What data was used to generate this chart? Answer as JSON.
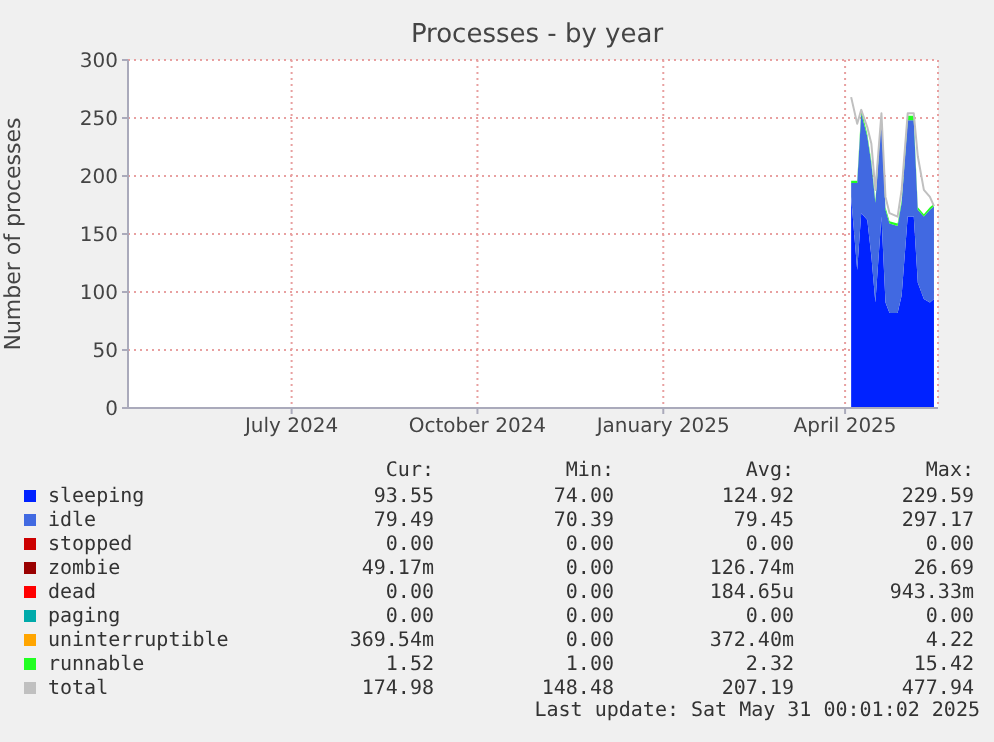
{
  "chart_data": {
    "type": "area",
    "title": "Processes - by year",
    "ylabel": "Number of processes",
    "x": [
      "2025-04-04",
      "2025-04-07",
      "2025-04-09",
      "2025-04-12",
      "2025-04-14",
      "2025-04-16",
      "2025-04-19",
      "2025-04-21",
      "2025-04-23",
      "2025-04-27",
      "2025-04-29",
      "2025-05-02",
      "2025-05-05",
      "2025-05-07",
      "2025-05-10",
      "2025-05-13",
      "2025-05-15"
    ],
    "series": [
      {
        "name": "sleeping",
        "color": "#0022ff",
        "values": [
          182,
          119,
          168,
          162,
          131,
          91,
          165,
          91,
          82,
          82,
          97,
          165,
          165,
          108,
          94,
          91,
          94
        ]
      },
      {
        "name": "idle",
        "color": "#4169e1",
        "values": [
          12,
          75,
          86,
          72,
          80,
          86,
          86,
          80,
          77,
          75,
          80,
          83,
          83,
          63,
          71,
          80,
          80
        ]
      },
      {
        "name": "stopped",
        "color": "#cc0000",
        "values": [
          null,
          null,
          null,
          null,
          null,
          null,
          null,
          null,
          null,
          null,
          null,
          null,
          null,
          null,
          null,
          null,
          null
        ]
      },
      {
        "name": "zombie",
        "color": "#990000",
        "values": [
          null,
          null,
          null,
          null,
          null,
          null,
          null,
          null,
          null,
          null,
          null,
          null,
          null,
          null,
          null,
          null,
          null
        ]
      },
      {
        "name": "dead",
        "color": "#ff0000",
        "values": [
          null,
          null,
          null,
          null,
          null,
          null,
          null,
          null,
          null,
          null,
          null,
          null,
          null,
          null,
          null,
          null,
          null
        ]
      },
      {
        "name": "paging",
        "color": "#00aaaa",
        "values": [
          null,
          null,
          null,
          null,
          null,
          null,
          null,
          null,
          null,
          null,
          null,
          null,
          null,
          null,
          null,
          null,
          null
        ]
      },
      {
        "name": "uninterruptible",
        "color": "#ffa500",
        "values": [
          null,
          null,
          null,
          null,
          null,
          null,
          null,
          null,
          null,
          null,
          null,
          null,
          null,
          null,
          null,
          null,
          null
        ]
      },
      {
        "name": "runnable",
        "color": "#22ff22",
        "values": [
          2,
          2,
          4,
          2,
          2,
          2,
          2,
          2,
          2,
          2,
          2,
          4,
          4,
          2,
          2,
          2,
          2
        ]
      },
      {
        "name": "total",
        "type": "line",
        "color": "#c0c0c0",
        "values": [
          268,
          245,
          257,
          242,
          228,
          188,
          254,
          182,
          168,
          165,
          188,
          254,
          254,
          217,
          188,
          182,
          174
        ]
      }
    ],
    "stacked": true,
    "xlim": [
      "2024-04-11",
      "2025-05-17"
    ],
    "xticks": [
      {
        "value": "2024-07-01",
        "label": "July 2024"
      },
      {
        "value": "2024-10-01",
        "label": "October 2024"
      },
      {
        "value": "2025-01-01",
        "label": "January 2025"
      },
      {
        "value": "2025-04-01",
        "label": "April 2025"
      }
    ],
    "ylim": [
      0,
      300
    ],
    "yticks": [
      0,
      50,
      100,
      150,
      200,
      250,
      300
    ],
    "grid": true,
    "legend": "bottom",
    "annotations": [
      "Cur:",
      "Min:",
      "Avg:",
      "Max:",
      "93.55",
      "74.00",
      "124.92",
      "229.59",
      "79.49",
      "70.39",
      "79.45",
      "297.17",
      "0.00",
      "0.00",
      "0.00",
      "0.00",
      "49.17m",
      "0.00",
      "126.74m",
      "26.69",
      "0.00",
      "0.00",
      "184.65u",
      "943.33m",
      "0.00",
      "0.00",
      "0.00",
      "0.00",
      "369.54m",
      "0.00",
      "372.40m",
      "4.22",
      "1.52",
      "1.00",
      "2.32",
      "15.42",
      "174.98",
      "148.48",
      "207.19",
      "477.94",
      "Last update: Sat May 31 00:01:02 2025"
    ]
  }
}
